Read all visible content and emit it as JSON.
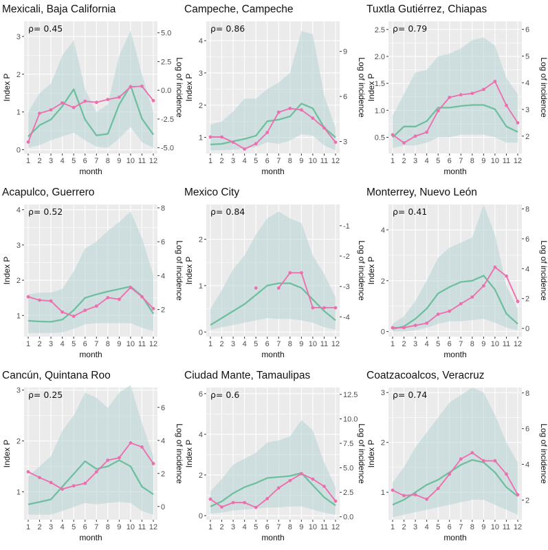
{
  "figure": {
    "month_label": "month",
    "left_axis_label": "Index P",
    "right_axis_label": "Log of incidence",
    "rho_symbol": "ρ="
  },
  "colors": {
    "panel_bg": "#ebebeb",
    "grid": "#ffffff",
    "ribbon": "#b7d3d3",
    "index_line": "#6dbf9e",
    "incidence_line": "#ee6fae"
  },
  "chart_data": [
    {
      "type": "line",
      "title": "Mexicali, Baja California",
      "rho": "0.45",
      "x": [
        1,
        2,
        3,
        4,
        5,
        6,
        7,
        8,
        9,
        10,
        11,
        12
      ],
      "xlabel": "month",
      "ylabel": "Index P",
      "y2label": "Log of incidence",
      "ylim": [
        -0.1,
        3.4
      ],
      "y_ticks": [
        0,
        1,
        2,
        3
      ],
      "y2lim": [
        -5.5,
        6.0
      ],
      "y2_ticks": [
        -5.0,
        -2.5,
        0.0,
        2.5,
        5.0
      ],
      "y2_tick_labels": [
        "-5.0",
        "-2.5",
        "0.0",
        "2.5",
        "5.0"
      ],
      "index_p": [
        0.35,
        0.65,
        0.8,
        1.15,
        1.6,
        0.8,
        0.38,
        0.42,
        1.2,
        1.7,
        0.82,
        0.4
      ],
      "index_p_lower": [
        0.05,
        0.12,
        0.25,
        0.35,
        0.45,
        0.25,
        0.08,
        0.05,
        0.3,
        0.6,
        0.2,
        0.05
      ],
      "index_p_upper": [
        1.0,
        1.5,
        1.75,
        2.5,
        2.9,
        1.6,
        1.0,
        1.2,
        2.5,
        3.15,
        2.0,
        1.0
      ],
      "log_incidence": [
        -4.5,
        -2.0,
        -1.7,
        -1.1,
        -1.5,
        -0.95,
        -1.05,
        -0.8,
        -0.6,
        0.3,
        0.35,
        -0.9
      ]
    },
    {
      "type": "line",
      "title": "Campeche, Campeche",
      "rho": "0.86",
      "x": [
        1,
        2,
        3,
        4,
        5,
        6,
        7,
        8,
        9,
        10,
        11,
        12
      ],
      "xlabel": "month",
      "ylabel": "Index P",
      "y2label": "Log of incidence",
      "ylim": [
        0.5,
        4.6
      ],
      "y_ticks": [
        1,
        2,
        3,
        4
      ],
      "y2lim": [
        2.2,
        11.0
      ],
      "y2_ticks": [
        3,
        6,
        9
      ],
      "y2_tick_labels": [
        "3",
        "6",
        "9"
      ],
      "index_p": [
        0.78,
        0.8,
        0.88,
        0.95,
        1.05,
        1.5,
        1.55,
        1.65,
        2.05,
        1.9,
        1.3,
        1.0
      ],
      "index_p_lower": [
        0.6,
        0.6,
        0.62,
        0.65,
        0.7,
        0.85,
        0.8,
        0.9,
        1.1,
        1.05,
        0.75,
        0.6
      ],
      "index_p_upper": [
        1.4,
        1.5,
        1.8,
        2.2,
        2.2,
        2.5,
        2.7,
        3.0,
        4.3,
        4.2,
        2.3,
        1.3
      ],
      "log_incidence": [
        3.3,
        3.3,
        2.95,
        2.5,
        2.85,
        3.6,
        4.95,
        5.2,
        5.1,
        4.55,
        3.9,
        2.95
      ]
    },
    {
      "type": "line",
      "title": "Tuxtla Gutiérrez, Chiapas",
      "rho": "0.79",
      "x": [
        1,
        2,
        3,
        4,
        5,
        6,
        7,
        8,
        9,
        10,
        11,
        12
      ],
      "xlabel": "month",
      "ylabel": "Index P",
      "y2label": "Log of incidence",
      "ylim": [
        0.2,
        2.65
      ],
      "y_ticks": [
        0.5,
        1.0,
        1.5,
        2.0,
        2.5
      ],
      "y_tick_labels": [
        "0.5",
        "1.0",
        "1.5",
        "2.0",
        "2.5"
      ],
      "y2lim": [
        1.35,
        6.3
      ],
      "y2_ticks": [
        2,
        3,
        4,
        5,
        6
      ],
      "y2_tick_labels": [
        "2",
        "3",
        "4",
        "5",
        "6"
      ],
      "index_p": [
        0.5,
        0.7,
        0.7,
        0.8,
        1.05,
        1.05,
        1.08,
        1.1,
        1.1,
        1.02,
        0.7,
        0.6
      ],
      "index_p_lower": [
        0.3,
        0.35,
        0.35,
        0.4,
        0.5,
        0.5,
        0.55,
        0.55,
        0.55,
        0.5,
        0.4,
        0.4
      ],
      "index_p_upper": [
        0.9,
        1.3,
        1.7,
        1.75,
        2.0,
        2.05,
        2.15,
        2.3,
        2.35,
        2.2,
        1.6,
        1.3
      ],
      "log_incidence": [
        2.05,
        1.75,
        2.0,
        2.15,
        2.95,
        3.45,
        3.55,
        3.6,
        3.75,
        4.05,
        3.15,
        2.5
      ]
    },
    {
      "type": "line",
      "title": "Acapulco, Guerrero",
      "rho": "0.52",
      "x": [
        1,
        2,
        3,
        4,
        5,
        6,
        7,
        8,
        9,
        10,
        11,
        12
      ],
      "xlabel": "month",
      "ylabel": "Index P",
      "y2label": "Log of incidence",
      "ylim": [
        0.4,
        4.15
      ],
      "y_ticks": [
        1,
        2,
        3,
        4
      ],
      "y2lim": [
        0.4,
        8.2
      ],
      "y2_ticks": [
        2,
        4,
        6,
        8
      ],
      "y2_tick_labels": [
        "2",
        "4",
        "6",
        "8"
      ],
      "index_p": [
        0.85,
        0.83,
        0.82,
        0.88,
        1.15,
        1.5,
        1.6,
        1.68,
        1.75,
        1.82,
        1.55,
        1.05
      ],
      "index_p_lower": [
        0.5,
        0.5,
        0.5,
        0.52,
        0.62,
        0.75,
        0.78,
        0.78,
        0.78,
        0.78,
        0.65,
        0.55
      ],
      "index_p_upper": [
        1.6,
        1.65,
        1.65,
        1.75,
        2.25,
        2.9,
        3.1,
        3.4,
        3.65,
        3.95,
        3.2,
        2.15
      ],
      "log_incidence": [
        2.75,
        2.55,
        2.5,
        1.85,
        1.6,
        1.95,
        2.2,
        2.7,
        2.6,
        3.3,
        2.75,
        2.05
      ]
    },
    {
      "type": "line",
      "title": "Mexico City",
      "rho": "0.84",
      "x": [
        1,
        2,
        3,
        4,
        5,
        6,
        7,
        8,
        9,
        10,
        11,
        12
      ],
      "xlabel": "month",
      "ylabel": "Index P",
      "y2label": "Log of incidence",
      "ylim": [
        -0.1,
        2.75
      ],
      "y_ticks": [
        0,
        1,
        2
      ],
      "y2lim": [
        -4.65,
        -0.3
      ],
      "y2_ticks": [
        -4,
        -3,
        -2,
        -1
      ],
      "y2_tick_labels": [
        "-4",
        "-3",
        "-2",
        "-1"
      ],
      "index_p": [
        0.15,
        0.3,
        0.45,
        0.6,
        0.8,
        1.0,
        1.05,
        1.05,
        0.95,
        0.7,
        0.45,
        0.25
      ],
      "index_p_lower": [
        0.05,
        0.1,
        0.15,
        0.2,
        0.25,
        0.3,
        0.28,
        0.28,
        0.25,
        0.2,
        0.1,
        0.05
      ],
      "index_p_upper": [
        0.5,
        0.9,
        1.35,
        1.65,
        2.1,
        2.45,
        2.6,
        2.45,
        2.35,
        1.65,
        1.25,
        0.75
      ],
      "log_incidence": [
        null,
        null,
        null,
        null,
        -3.05,
        null,
        -3.05,
        -2.55,
        -2.55,
        -3.7,
        -3.7,
        -3.7
      ]
    },
    {
      "type": "line",
      "title": "Monterrey, Nuevo León",
      "rho": "0.41",
      "x": [
        1,
        2,
        3,
        4,
        5,
        6,
        7,
        8,
        9,
        10,
        11,
        12
      ],
      "xlabel": "month",
      "ylabel": "Index P",
      "y2label": "Log of incidence",
      "ylim": [
        -0.2,
        5.0
      ],
      "y_ticks": [
        0,
        2,
        4
      ],
      "y2lim": [
        -0.55,
        8.3
      ],
      "y2_ticks": [
        0,
        2,
        4,
        6,
        8
      ],
      "y2_tick_labels": [
        "0",
        "2",
        "4",
        "6",
        "8"
      ],
      "index_p": [
        0.1,
        0.2,
        0.5,
        0.9,
        1.5,
        1.75,
        1.95,
        2.0,
        2.2,
        1.65,
        0.7,
        0.3
      ],
      "index_p_lower": [
        0.0,
        0.0,
        0.05,
        0.15,
        0.3,
        0.4,
        0.4,
        0.45,
        0.5,
        0.35,
        0.15,
        0.05
      ],
      "index_p_upper": [
        0.3,
        0.6,
        1.2,
        2.0,
        2.9,
        3.3,
        3.5,
        3.7,
        5.0,
        3.8,
        1.8,
        0.9
      ],
      "log_incidence": [
        0.05,
        0.05,
        0.2,
        0.35,
        0.95,
        1.15,
        1.65,
        2.1,
        2.85,
        4.1,
        3.5,
        1.8
      ]
    },
    {
      "type": "line",
      "title": "Cancún, Quintana Roo",
      "rho": "0.25",
      "x": [
        1,
        2,
        3,
        4,
        5,
        6,
        7,
        8,
        9,
        10,
        11,
        12
      ],
      "xlabel": "month",
      "ylabel": "Index P",
      "y2label": "Log of incidence",
      "ylim": [
        0.45,
        3.05
      ],
      "y_ticks": [
        1,
        2,
        3
      ],
      "y2lim": [
        -0.8,
        7.2
      ],
      "y2_ticks": [
        0,
        2,
        4,
        6
      ],
      "y2_tick_labels": [
        "0",
        "2",
        "4",
        "6"
      ],
      "index_p": [
        0.75,
        0.8,
        0.85,
        1.1,
        1.35,
        1.6,
        1.45,
        1.5,
        1.62,
        1.5,
        1.1,
        0.95
      ],
      "index_p_lower": [
        0.55,
        0.55,
        0.55,
        0.62,
        0.7,
        0.78,
        0.75,
        0.78,
        0.8,
        0.78,
        0.62,
        0.55
      ],
      "index_p_upper": [
        1.3,
        1.5,
        1.7,
        2.2,
        2.5,
        2.95,
        2.85,
        2.65,
        2.95,
        3.1,
        2.35,
        1.7
      ],
      "log_incidence": [
        2.1,
        1.75,
        1.45,
        1.05,
        1.25,
        1.4,
        2.1,
        2.8,
        2.95,
        3.85,
        3.6,
        2.6
      ]
    },
    {
      "type": "line",
      "title": "Ciudad Mante, Tamaulipas",
      "rho": "0.6",
      "x": [
        1,
        2,
        3,
        4,
        5,
        6,
        7,
        8,
        9,
        10,
        11,
        12
      ],
      "xlabel": "month",
      "ylabel": "Index P",
      "y2label": "Log of incidence",
      "ylim": [
        -0.2,
        6.3
      ],
      "y_ticks": [
        0,
        2,
        4,
        6
      ],
      "y2lim": [
        -0.3,
        13.2
      ],
      "y2_ticks": [
        0,
        2.5,
        5,
        7.5,
        10,
        12.5
      ],
      "y2_tick_labels": [
        "0.0",
        "2.5",
        "5.0",
        "7.5",
        "10.0",
        "12.5"
      ],
      "index_p": [
        0.45,
        0.7,
        1.1,
        1.4,
        1.6,
        1.85,
        1.9,
        1.95,
        2.1,
        1.5,
        0.9,
        0.5
      ],
      "index_p_lower": [
        0.1,
        0.15,
        0.25,
        0.3,
        0.35,
        0.4,
        0.4,
        0.45,
        0.45,
        0.3,
        0.15,
        0.05
      ],
      "index_p_upper": [
        1.2,
        1.8,
        2.5,
        2.8,
        3.1,
        3.6,
        3.7,
        3.9,
        4.7,
        4.2,
        2.6,
        1.4
      ],
      "log_incidence": [
        1.8,
        1.0,
        1.45,
        1.45,
        0.95,
        1.85,
        2.95,
        3.7,
        4.4,
        3.85,
        3.1,
        1.6
      ]
    },
    {
      "type": "line",
      "title": "Coatzacoalcos, Veracruz",
      "rho": "0.74",
      "x": [
        1,
        2,
        3,
        4,
        5,
        6,
        7,
        8,
        9,
        10,
        11,
        12
      ],
      "xlabel": "month",
      "ylabel": "Index P",
      "y2label": "Log of incidence",
      "ylim": [
        0.45,
        3.1
      ],
      "y_ticks": [
        1,
        2,
        3
      ],
      "y2lim": [
        0.9,
        8.3
      ],
      "y2_ticks": [
        2,
        4,
        6,
        8
      ],
      "y2_tick_labels": [
        "2",
        "4",
        "6",
        "8"
      ],
      "index_p": [
        0.75,
        0.85,
        1.0,
        1.15,
        1.25,
        1.4,
        1.55,
        1.65,
        1.6,
        1.4,
        1.1,
        0.92
      ],
      "index_p_lower": [
        0.5,
        0.55,
        0.6,
        0.65,
        0.7,
        0.75,
        0.8,
        0.85,
        0.85,
        0.75,
        0.65,
        0.55
      ],
      "index_p_upper": [
        1.2,
        1.5,
        1.9,
        2.2,
        2.5,
        2.8,
        2.95,
        3.1,
        3.0,
        2.55,
        2.0,
        1.6
      ],
      "log_incidence": [
        2.55,
        2.25,
        2.3,
        2.05,
        2.65,
        3.45,
        4.3,
        4.65,
        4.2,
        4.2,
        3.45,
        2.3
      ]
    }
  ]
}
